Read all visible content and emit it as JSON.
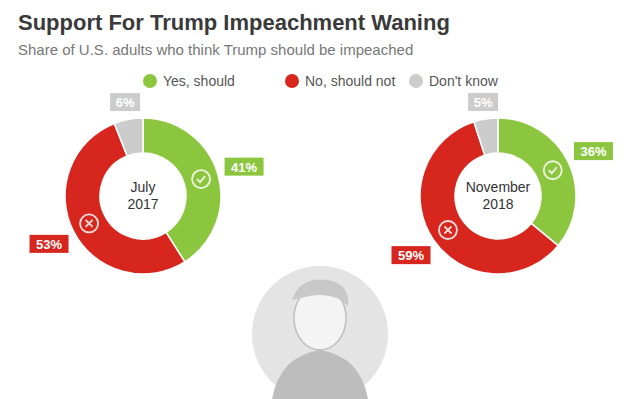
{
  "title": "Support For Trump Impeachment Waning",
  "subtitle": "Share of U.S. adults who think Trump should be impeached",
  "chart_data": [
    {
      "type": "pie",
      "title": "July 2017",
      "categories": [
        "Yes, should",
        "No, should not",
        "Don't know"
      ],
      "values": [
        41,
        53,
        6
      ],
      "value_labels": [
        "41%",
        "53%",
        "6%"
      ],
      "colors": [
        "#8cc63f",
        "#d7261e",
        "#cccccc"
      ],
      "data_labels": true,
      "legend": "top"
    },
    {
      "type": "pie",
      "title": "November 2018",
      "categories": [
        "Yes, should",
        "No, should not",
        "Don't know"
      ],
      "values": [
        36,
        59,
        5
      ],
      "value_labels": [
        "36%",
        "59%",
        "5%"
      ],
      "colors": [
        "#8cc63f",
        "#d7261e",
        "#cccccc"
      ],
      "data_labels": true,
      "legend": "top"
    }
  ]
}
